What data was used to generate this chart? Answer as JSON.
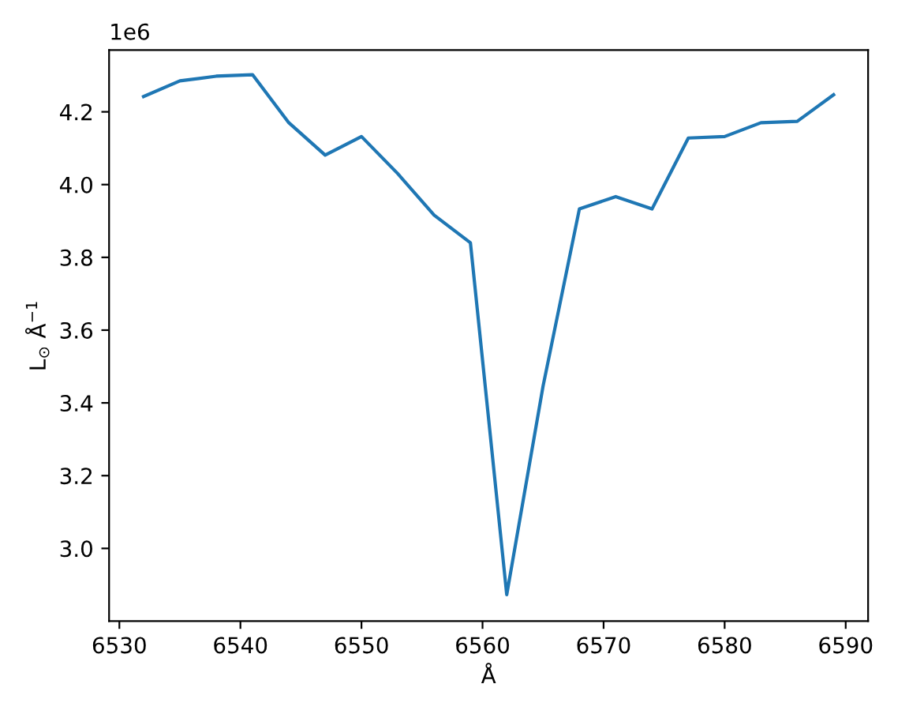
{
  "chart_data": {
    "type": "line",
    "xlabel": "Å",
    "ylabel": "L$_{⊙}$ Å$^{−1}$",
    "x": [
      6532,
      6535,
      6538,
      6541,
      6544,
      6547,
      6550,
      6553,
      6556,
      6559,
      6562,
      6565,
      6568,
      6571,
      6574,
      6577,
      6580,
      6583,
      6586,
      6589
    ],
    "series": [
      {
        "color": "#1f77b4",
        "values": [
          4.242,
          4.285,
          4.298,
          4.302,
          4.17,
          4.081,
          4.132,
          4.03,
          3.916,
          3.84,
          2.873,
          3.446,
          3.933,
          3.967,
          3.933,
          4.128,
          4.132,
          4.17,
          4.174,
          4.247
        ]
      }
    ],
    "xlim": [
      6529.15,
      6591.85
    ],
    "ylim": [
      2.8,
      4.37
    ],
    "xticks": [
      6530,
      6540,
      6550,
      6560,
      6570,
      6580,
      6590
    ],
    "yticks": [
      {
        "value": 3.0,
        "label": "3.0"
      },
      {
        "value": 3.2,
        "label": "3.2"
      },
      {
        "value": 3.4,
        "label": "3.4"
      },
      {
        "value": 3.6,
        "label": "3.6"
      },
      {
        "value": 3.8,
        "label": "3.8"
      },
      {
        "value": 4.0,
        "label": "4.0"
      },
      {
        "value": 4.2,
        "label": "4.2"
      }
    ],
    "annotations": [
      "1e6"
    ],
    "marker": "none",
    "line_style": "solid"
  }
}
